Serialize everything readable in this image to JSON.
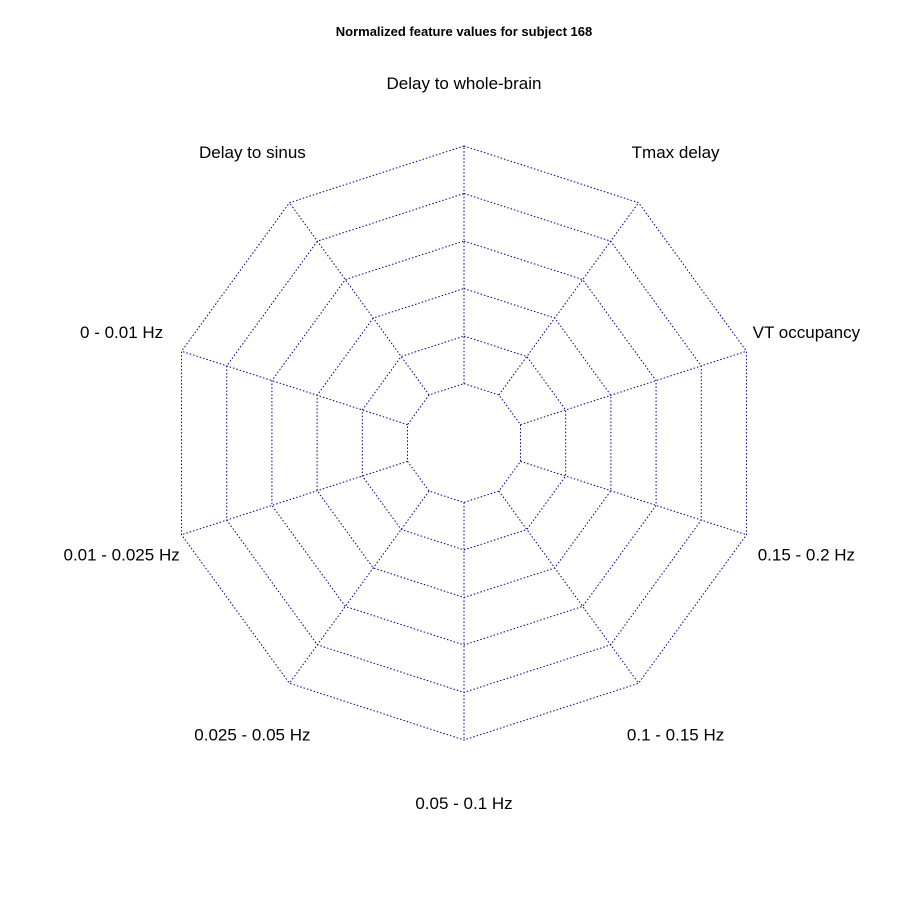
{
  "chart_data": {
    "type": "radar",
    "title": "Normalized feature values for subject 168",
    "axes": [
      "Delay to whole-brain",
      "Tmax delay",
      "VT occupancy",
      "0.15 - 0.2 Hz",
      "0.1 - 0.15 Hz",
      "0.05 - 0.1 Hz",
      "0.025 - 0.05 Hz",
      "0.01 - 0.025 Hz",
      "0 - 0.01 Hz",
      "Delay to sinus"
    ],
    "grid_levels": 5,
    "inner_hole_fraction": 0.2,
    "grid_color": "#00008b",
    "grid_style": "dotted",
    "series": []
  }
}
